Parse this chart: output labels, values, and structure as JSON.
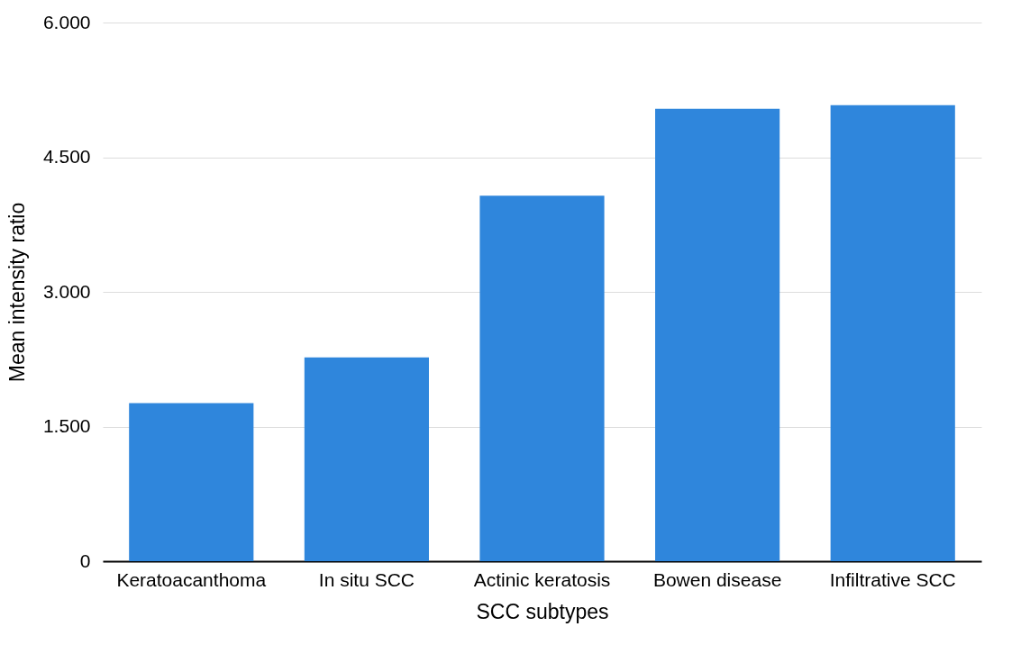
{
  "chart_data": {
    "type": "bar",
    "xlabel": "SCC subtypes",
    "ylabel": "Mean intensity ratio",
    "categories": [
      "Keratoacanthoma",
      "In situ SCC",
      "Actinic keratosis",
      "Bowen disease",
      "Infiltrative SCC"
    ],
    "values": [
      1760,
      2270,
      4070,
      5040,
      5080
    ],
    "color": "#2f86dc",
    "ylim": [
      0,
      6000
    ],
    "yticks": [
      0,
      {
        "value": 1500,
        "label": "1.500"
      },
      {
        "value": 3000,
        "label": "3.000"
      },
      {
        "value": 4500,
        "label": "4.500"
      },
      {
        "value": 6000,
        "label": "6.000"
      }
    ],
    "grid": "y"
  }
}
